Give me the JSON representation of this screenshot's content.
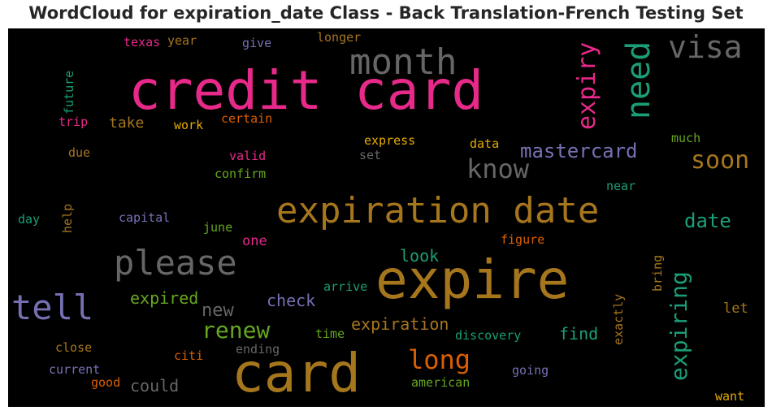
{
  "title": "WordCloud for expiration_date Class - Back Translation-French Testing Set",
  "colors": {
    "pink": "#e7298a",
    "gold": "#a6761d",
    "teal": "#1b9e77",
    "purple": "#7570b3",
    "gray": "#666666",
    "orange": "#d95f02",
    "green": "#66a61e",
    "yellow": "#e6ab02"
  },
  "words": [
    {
      "text": "credit card",
      "color": "#e7298a"
    },
    {
      "text": "card",
      "color": "#a6761d"
    },
    {
      "text": "expire",
      "color": "#a6761d"
    },
    {
      "text": "expiration date",
      "color": "#a6761d"
    },
    {
      "text": "month",
      "color": "#666666"
    },
    {
      "text": "visa",
      "color": "#666666"
    },
    {
      "text": "need",
      "color": "#1b9e77"
    },
    {
      "text": "expiry",
      "color": "#e7298a"
    },
    {
      "text": "please",
      "color": "#666666"
    },
    {
      "text": "tell",
      "color": "#7570b3"
    },
    {
      "text": "know",
      "color": "#666666"
    },
    {
      "text": "mastercard",
      "color": "#7570b3"
    },
    {
      "text": "soon",
      "color": "#a6761d"
    },
    {
      "text": "date",
      "color": "#1b9e77"
    },
    {
      "text": "expiring",
      "color": "#1b9e77"
    },
    {
      "text": "long",
      "color": "#d95f02"
    },
    {
      "text": "renew",
      "color": "#66a61e"
    },
    {
      "text": "expired",
      "color": "#66a61e"
    },
    {
      "text": "new",
      "color": "#666666"
    },
    {
      "text": "check",
      "color": "#7570b3"
    },
    {
      "text": "look",
      "color": "#1b9e77"
    },
    {
      "text": "expiration",
      "color": "#a6761d"
    },
    {
      "text": "find",
      "color": "#1b9e77"
    },
    {
      "text": "could",
      "color": "#666666"
    },
    {
      "text": "take",
      "color": "#a6761d"
    },
    {
      "text": "texas",
      "color": "#e7298a"
    },
    {
      "text": "year",
      "color": "#a6761d"
    },
    {
      "text": "give",
      "color": "#7570b3"
    },
    {
      "text": "longer",
      "color": "#a6761d"
    },
    {
      "text": "future",
      "color": "#1b9e77"
    },
    {
      "text": "trip",
      "color": "#e7298a"
    },
    {
      "text": "work",
      "color": "#e6ab02"
    },
    {
      "text": "certain",
      "color": "#d95f02"
    },
    {
      "text": "express",
      "color": "#e6ab02"
    },
    {
      "text": "data",
      "color": "#e6ab02"
    },
    {
      "text": "much",
      "color": "#66a61e"
    },
    {
      "text": "due",
      "color": "#a6761d"
    },
    {
      "text": "valid",
      "color": "#e7298a"
    },
    {
      "text": "set",
      "color": "#666666"
    },
    {
      "text": "confirm",
      "color": "#66a61e"
    },
    {
      "text": "near",
      "color": "#1b9e77"
    },
    {
      "text": "help",
      "color": "#a6761d"
    },
    {
      "text": "day",
      "color": "#1b9e77"
    },
    {
      "text": "capital",
      "color": "#7570b3"
    },
    {
      "text": "june",
      "color": "#66a61e"
    },
    {
      "text": "one",
      "color": "#e7298a"
    },
    {
      "text": "figure",
      "color": "#d95f02"
    },
    {
      "text": "bring",
      "color": "#a6761d"
    },
    {
      "text": "arrive",
      "color": "#1b9e77"
    },
    {
      "text": "exactly",
      "color": "#a6761d"
    },
    {
      "text": "let",
      "color": "#a6761d"
    },
    {
      "text": "time",
      "color": "#66a61e"
    },
    {
      "text": "discovery",
      "color": "#1b9e77"
    },
    {
      "text": "close",
      "color": "#a6761d"
    },
    {
      "text": "citi",
      "color": "#d95f02"
    },
    {
      "text": "ending",
      "color": "#666666"
    },
    {
      "text": "current",
      "color": "#7570b3"
    },
    {
      "text": "good",
      "color": "#d95f02"
    },
    {
      "text": "going",
      "color": "#7570b3"
    },
    {
      "text": "american",
      "color": "#66a61e"
    },
    {
      "text": "want",
      "color": "#e6ab02"
    }
  ]
}
